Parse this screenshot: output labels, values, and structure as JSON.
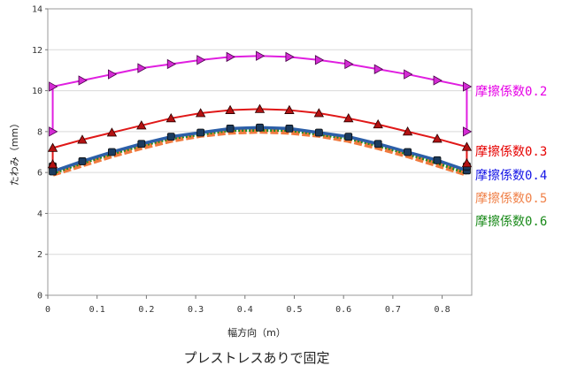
{
  "chart_data": {
    "type": "line",
    "caption": "プレストレスありで固定",
    "xlabel": "幅方向（m）",
    "ylabel": "たわみ（mm）",
    "xlim": [
      0,
      0.86
    ],
    "ylim": [
      0,
      14
    ],
    "xticks": [
      0,
      0.1,
      0.2,
      0.3,
      0.4,
      0.5,
      0.6,
      0.7,
      0.8
    ],
    "yticks": [
      0,
      2,
      4,
      6,
      8,
      10,
      12,
      14
    ],
    "grid": true,
    "legend": "right",
    "x": [
      0.01,
      0.01,
      0.07,
      0.13,
      0.19,
      0.25,
      0.31,
      0.37,
      0.43,
      0.49,
      0.55,
      0.61,
      0.67,
      0.73,
      0.79,
      0.85,
      0.85
    ],
    "series": [
      {
        "name": "摩擦係数0.2",
        "color": "#e01fe0",
        "marker_color": "#d42bd4",
        "label_color": "#e600e6",
        "values": [
          8.0,
          10.2,
          10.5,
          10.8,
          11.1,
          11.3,
          11.5,
          11.65,
          11.7,
          11.65,
          11.5,
          11.3,
          11.05,
          10.8,
          10.5,
          10.2,
          8.0
        ]
      },
      {
        "name": "摩擦係数0.3",
        "color": "#e01818",
        "marker_color": "#b31212",
        "label_color": "#e60000",
        "values": [
          6.4,
          7.2,
          7.6,
          7.95,
          8.3,
          8.65,
          8.9,
          9.05,
          9.1,
          9.05,
          8.9,
          8.65,
          8.35,
          8.0,
          7.65,
          7.25,
          6.45
        ]
      },
      {
        "name": "摩擦係数0.4",
        "color": "#2c5fa8",
        "marker_color": "#1b3b5e",
        "label_color": "#1414e6",
        "values": [
          6.3,
          6.05,
          6.55,
          7.0,
          7.4,
          7.75,
          7.95,
          8.15,
          8.2,
          8.15,
          7.95,
          7.75,
          7.4,
          7.0,
          6.6,
          6.1,
          6.3
        ]
      },
      {
        "name": "摩擦係数0.5",
        "color": "#f07a3e",
        "marker_color": "#f07a3e",
        "label_color": "#f0824a",
        "values": [
          5.95,
          5.95,
          6.4,
          6.85,
          7.25,
          7.6,
          7.85,
          8.0,
          8.05,
          8.0,
          7.85,
          7.6,
          7.25,
          6.85,
          6.4,
          5.95,
          5.95
        ]
      },
      {
        "name": "摩擦係数0.6",
        "color": "#1e8c1e",
        "marker_color": "#1e8c1e",
        "label_color": "#1a8a1a",
        "values": [
          6.0,
          6.0,
          6.5,
          6.95,
          7.35,
          7.7,
          7.9,
          8.1,
          8.1,
          8.1,
          7.9,
          7.7,
          7.35,
          6.95,
          6.5,
          6.0,
          6.0
        ]
      }
    ]
  }
}
